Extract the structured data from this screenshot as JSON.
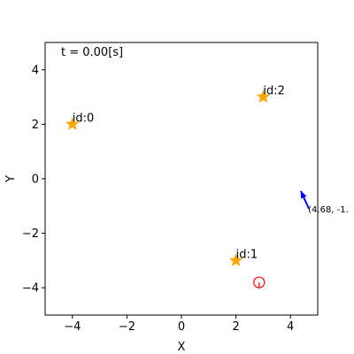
{
  "chart_data": {
    "type": "scatter",
    "title": "",
    "xlabel": "X",
    "ylabel": "Y",
    "xlim": [
      -5,
      5
    ],
    "ylim": [
      -5,
      5
    ],
    "xticks": [
      -4,
      -2,
      0,
      2,
      4
    ],
    "yticks": [
      -4,
      -2,
      0,
      2,
      4
    ],
    "xtick_labels": [
      "−4",
      "−2",
      "0",
      "2",
      "4"
    ],
    "ytick_labels": [
      "−4",
      "−2",
      "0",
      "2",
      "4"
    ],
    "grid": false,
    "time_text": "t = 0.00[s]",
    "landmarks": [
      {
        "label": "id:0",
        "x": -4,
        "y": 2
      },
      {
        "label": "id:1",
        "x": 2,
        "y": -3
      },
      {
        "label": "id:2",
        "x": 3,
        "y": 3
      }
    ],
    "robot": {
      "x": 2.85,
      "y": -3.8,
      "heading_deg": -90
    },
    "arrow": {
      "x": 4.68,
      "y": -1.1,
      "dx": -0.3,
      "dy": 0.65,
      "label": "(4.68, -1."
    },
    "colors": {
      "landmark": "#ffa500",
      "robot": "#ff0000",
      "arrow": "#0000ff",
      "axes": "#000000"
    }
  }
}
